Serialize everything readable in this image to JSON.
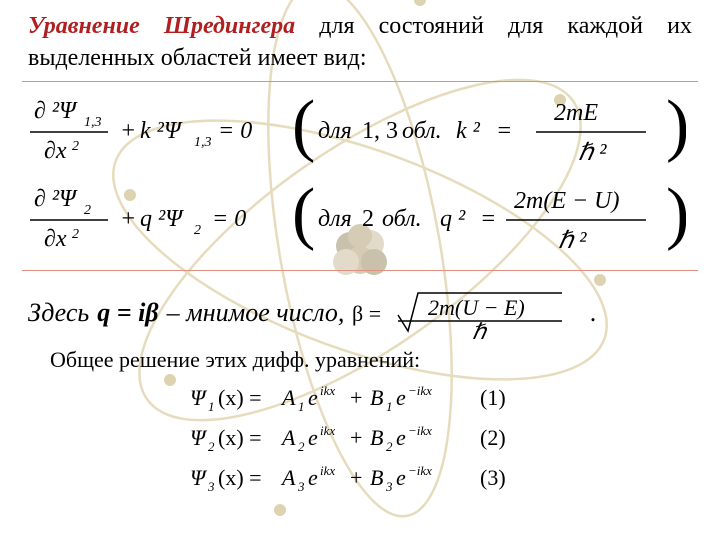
{
  "page": {
    "bg_color": "#ffffff",
    "text_color": "#000000",
    "accent_color": "#b02020",
    "eq_border_color": "#e09080",
    "atom_orbit_color": "#d2c088",
    "atom_electron_color": "#c2b070",
    "nucleus_colors": [
      "#9e8f6a",
      "#cbbf9d",
      "#b5a47a"
    ]
  },
  "intro": {
    "title": "Уравнение Шредингера",
    "tail": " для состояний для каждой их выделенных областей имеет вид:"
  },
  "eq1": {
    "lhs_num": "∂ ²Ψ",
    "lhs_sub": "1,3",
    "lhs_den": "∂x",
    "k2": "k ²Ψ",
    "k2_sub": "1,3",
    "zero": " = 0",
    "paren_label_a": "для",
    "paren_label_b": "1, 3",
    "paren_label_c": "обл.",
    "rhs_lhs": "k ²",
    "rhs_num": "2mE",
    "rhs_den": "ℏ ²"
  },
  "eq2": {
    "lhs_num": "∂ ²Ψ",
    "lhs_sub": "2",
    "lhs_den": "∂x",
    "q2": "q ²Ψ",
    "q2_sub": "2",
    "zero": " = 0",
    "paren_label_a": "для",
    "paren_label_b": "2",
    "paren_label_c": "обл.",
    "rhs_lhs": "q ²",
    "rhs_num": "2m(E − U)",
    "rhs_den": "ℏ ²"
  },
  "note": {
    "prefix": "Здесь  ",
    "var": "q = iβ",
    "mid": " – мнимое число, ",
    "beta_eq": "β =",
    "beta_num": "2m(U − E)",
    "beta_den": "ℏ",
    "end": "."
  },
  "solutions": {
    "caption": "Общее решение этих дифф. уравнений:",
    "rows": [
      {
        "psi": "Ψ",
        "idx": "1",
        "A": "A",
        "Ai": "1",
        "B": "B",
        "Bi": "1",
        "exp1": "ikx",
        "exp2": "−ikx",
        "n": "(1)"
      },
      {
        "psi": "Ψ",
        "idx": "2",
        "A": "A",
        "Ai": "2",
        "B": "B",
        "Bi": "2",
        "exp1": "ikx",
        "exp2": "−ikx",
        "n": "(2)"
      },
      {
        "psi": "Ψ",
        "idx": "3",
        "A": "A",
        "Ai": "3",
        "B": "B",
        "Bi": "3",
        "exp1": "ikx",
        "exp2": "−ikx",
        "n": "(3)"
      }
    ]
  }
}
